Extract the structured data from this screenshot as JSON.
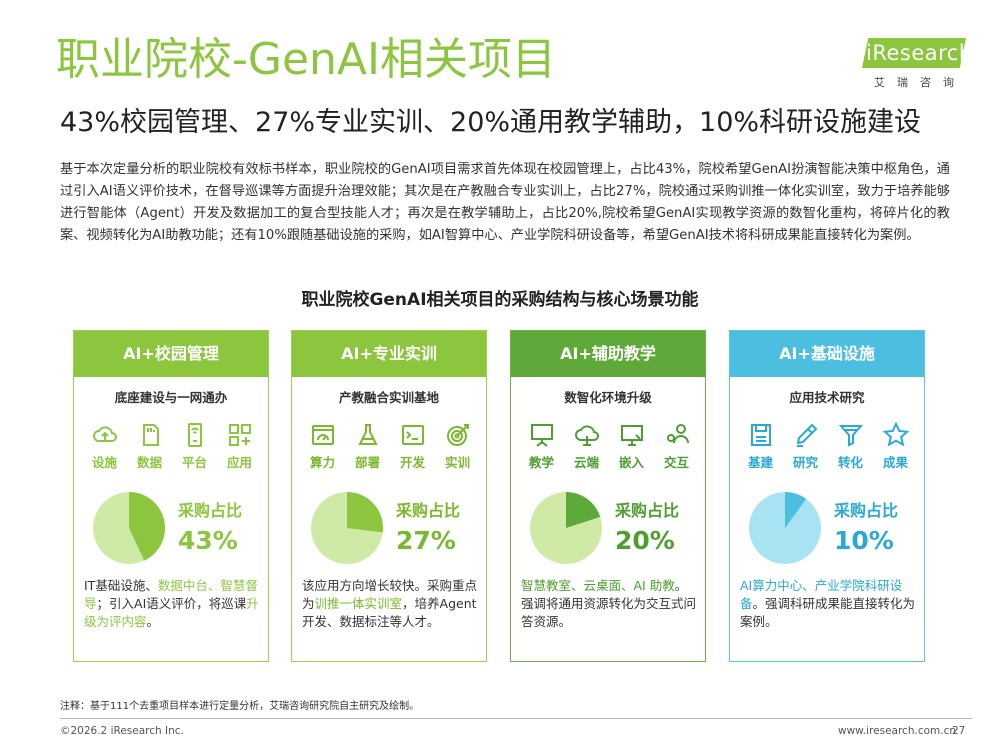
{
  "header": {
    "title": "职业院校-GenAI相关项目",
    "subtitle": "43%校园管理、27%专业实训、20%通用教学辅助，10%科研设施建设"
  },
  "logo": {
    "word": "iResearch",
    "cn": "艾瑞咨询"
  },
  "intro": "基于本次定量分析的职业院校有效标书样本，职业院校的GenAI项目需求首先体现在校园管理上，占比43%，院校希望GenAI扮演智能决策中枢角色，通过引入AI语义评价技术，在督导巡课等方面提升治理效能；其次是在产教融合专业实训上，占比27%，院校通过采购训推一体化实训室，致力于培养能够进行智能体（Agent）开发及数据加工的复合型技能人才；再次是在教学辅助上，占比20%,院校希望GenAI实现教学资源的数智化重构，将碎片化的教案、视频转化为AI助教功能；还有10%跟随基础设施的采购，如AI智算中心、产业学院科研设备等，希望GenAI技术将科研成果能直接转化为案例。",
  "section_title": "职业院校GenAI相关项目的采购结构与核心场景功能",
  "cards": [
    {
      "header": "AI+校园管理",
      "sub": "底座建设与一网通办",
      "icons": [
        {
          "label": "设施",
          "icon": "cloud-upload-icon"
        },
        {
          "label": "数据",
          "icon": "sd-card-icon"
        },
        {
          "label": "平台",
          "icon": "device-icon"
        },
        {
          "label": "应用",
          "icon": "apps-grid-icon"
        }
      ],
      "pct_label": "采购占比",
      "pct_value": "43%",
      "share": 0.43,
      "desc_a": "IT基础设施、",
      "desc_hl": "数据中台、智慧督导",
      "desc_b": "；引入AI语义评价，将巡课",
      "desc_hl2": "升级为评内容",
      "desc_c": "。"
    },
    {
      "header": "AI+专业实训",
      "sub": "产教融合实训基地",
      "icons": [
        {
          "label": "算力",
          "icon": "dashboard-icon"
        },
        {
          "label": "部署",
          "icon": "flask-icon"
        },
        {
          "label": "开发",
          "icon": "terminal-icon"
        },
        {
          "label": "实训",
          "icon": "target-icon"
        }
      ],
      "pct_label": "采购占比",
      "pct_value": "27%",
      "share": 0.27,
      "desc_a": "该应用方向增长较快。采购重点为",
      "desc_hl": "训推一体实训室",
      "desc_b": "，培养Agent开发、数据标注等人才。",
      "desc_hl2": "",
      "desc_c": ""
    },
    {
      "header": "AI+辅助教学",
      "sub": "数智化环境升级",
      "icons": [
        {
          "label": "教学",
          "icon": "whiteboard-icon"
        },
        {
          "label": "云端",
          "icon": "cloud-icon"
        },
        {
          "label": "嵌入",
          "icon": "monitor-icon"
        },
        {
          "label": "交互",
          "icon": "users-icon"
        }
      ],
      "pct_label": "采购占比",
      "pct_value": "20%",
      "share": 0.2,
      "desc_a": "",
      "desc_hl": "智慧教室、云桌面、AI 助教",
      "desc_b": "。强调将通用资源转化为交互式问答资源。",
      "desc_hl2": "",
      "desc_c": ""
    },
    {
      "header": "AI+基础设施",
      "sub": "应用技术研究",
      "icons": [
        {
          "label": "基建",
          "icon": "save-icon"
        },
        {
          "label": "研究",
          "icon": "pen-icon"
        },
        {
          "label": "转化",
          "icon": "funnel-icon"
        },
        {
          "label": "成果",
          "icon": "star-icon"
        }
      ],
      "pct_label": "采购占比",
      "pct_value": "10%",
      "share": 0.1,
      "desc_a": "",
      "desc_hl": "AI算力中心、产业学院科研设备",
      "desc_b": "。强调科研成果能直接转化为案例。",
      "desc_hl2": "",
      "desc_c": ""
    }
  ],
  "colors": {
    "light_green": "#8cc63f",
    "pie_light": "#cfe9a6",
    "pie_dark": "#8cc63f",
    "pie_dark_3": "#5fa83a",
    "pie_light_4": "#a9e2f2",
    "pie_dark_4": "#4cbfe0"
  },
  "footer": {
    "note": "注释：基于111个去重项目样本进行定量分析，艾瑞咨询研究院自主研究及绘制。",
    "copyright": "©2026.2 iResearch Inc.",
    "url": "www.iresearch.com.cn",
    "page": "27"
  }
}
